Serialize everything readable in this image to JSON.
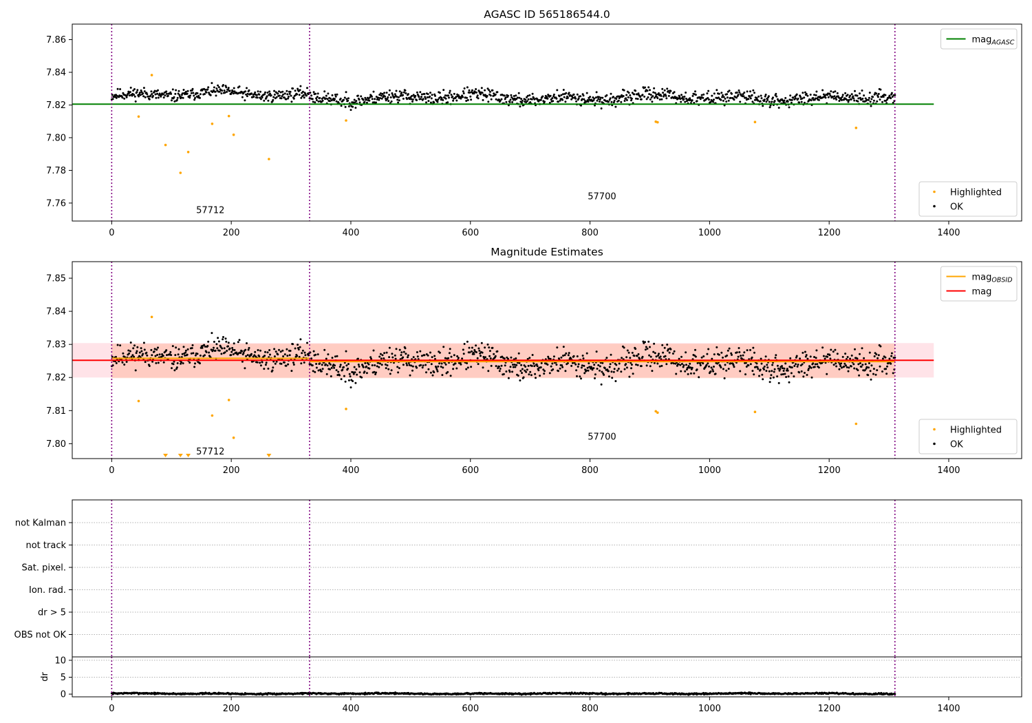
{
  "chart_data": [
    {
      "type": "scatter",
      "title": "AGASC ID 565186544.0",
      "xlim": [
        -66,
        1522
      ],
      "ylim": [
        7.749,
        7.8695
      ],
      "xticks": [
        0,
        200,
        400,
        600,
        800,
        1000,
        1200,
        1400
      ],
      "yticks": [
        7.76,
        7.78,
        7.8,
        7.82,
        7.84,
        7.86
      ],
      "ytick_decimals": 2,
      "vlines": [
        0,
        331,
        1310
      ],
      "obsid_labels": [
        {
          "text": "57712",
          "x": 165,
          "y": 7.7538
        },
        {
          "text": "57700",
          "x": 820,
          "y": 7.7623
        }
      ],
      "lines": [
        {
          "name": "mag_AGASC",
          "color": "#008000",
          "x": [
            -66,
            1375
          ],
          "y": [
            7.8205,
            7.8205
          ]
        }
      ],
      "legend_upper": [
        {
          "label": "mag",
          "subscript": "AGASC",
          "color": "#008000",
          "kind": "line"
        }
      ],
      "legend_lower": [
        {
          "label": "Highlighted",
          "color": "#ffa500",
          "kind": "dot"
        },
        {
          "label": "OK",
          "color": "#000000",
          "kind": "dot"
        }
      ],
      "series": [
        {
          "name": "Highlighted",
          "color": "#ffa500",
          "points": [
            [
              45,
              7.8129
            ],
            [
              67,
              7.8383
            ],
            [
              90,
              7.7955
            ],
            [
              115,
              7.7785
            ],
            [
              128,
              7.7912
            ],
            [
              168,
              7.8085
            ],
            [
              196,
              7.8132
            ],
            [
              204,
              7.8018
            ],
            [
              263,
              7.7869
            ],
            [
              392,
              7.8105
            ],
            [
              910,
              7.8098
            ],
            [
              913,
              7.8094
            ],
            [
              1076,
              7.8096
            ],
            [
              1245,
              7.806
            ]
          ]
        },
        {
          "name": "OK",
          "color": "#000000",
          "segments": [
            {
              "x0": 0,
              "x1": 330,
              "n": 330,
              "base": 7.8265,
              "amp": 0.004,
              "seed": 11
            },
            {
              "x0": 331,
              "x1": 1310,
              "n": 980,
              "base": 7.8245,
              "amp": 0.0045,
              "seed": 23
            }
          ]
        }
      ]
    },
    {
      "type": "scatter",
      "title": "Magnitude Estimates",
      "xlim": [
        -66,
        1522
      ],
      "ylim": [
        7.7955,
        7.855
      ],
      "xticks": [
        0,
        200,
        400,
        600,
        800,
        1000,
        1200,
        1400
      ],
      "yticks": [
        7.8,
        7.81,
        7.82,
        7.83,
        7.84,
        7.85
      ],
      "ytick_decimals": 2,
      "vlines": [
        0,
        331,
        1310
      ],
      "obsid_labels": [
        {
          "text": "57712",
          "x": 165,
          "y": 7.7968
        },
        {
          "text": "57700",
          "x": 820,
          "y": 7.8012
        }
      ],
      "bands": [
        {
          "color": "#ffc0cb",
          "opacity": 0.45,
          "x": [
            -66,
            1375
          ],
          "y": [
            7.82,
            7.8304
          ]
        },
        {
          "color": "#ffa07a",
          "opacity": 0.35,
          "x": [
            0,
            1310
          ],
          "y": [
            7.8198,
            7.8302
          ]
        }
      ],
      "lines": [
        {
          "name": "mag_OBSID",
          "color": "#ffa500",
          "x": [
            0,
            331
          ],
          "y": [
            7.8258,
            7.8258
          ]
        },
        {
          "name": "mag_OBSID",
          "color": "#ffa500",
          "x": [
            331,
            1310
          ],
          "y": [
            7.8248,
            7.8248
          ]
        },
        {
          "name": "mag",
          "color": "#ff0000",
          "x": [
            -66,
            1375
          ],
          "y": [
            7.8252,
            7.8252
          ]
        }
      ],
      "legend_upper": [
        {
          "label": "mag",
          "subscript": "OBSID",
          "color": "#ffa500",
          "kind": "line"
        },
        {
          "label": "mag",
          "subscript": "",
          "color": "#ff0000",
          "kind": "line"
        }
      ],
      "legend_lower": [
        {
          "label": "Highlighted",
          "color": "#ffa500",
          "kind": "dot"
        },
        {
          "label": "OK",
          "color": "#000000",
          "kind": "dot"
        }
      ],
      "clipped_markers": [
        90,
        115,
        128,
        263
      ],
      "series": [
        {
          "name": "Highlighted",
          "color": "#ffa500",
          "points": [
            [
              45,
              7.8129
            ],
            [
              67,
              7.8383
            ],
            [
              168,
              7.8085
            ],
            [
              196,
              7.8132
            ],
            [
              204,
              7.8018
            ],
            [
              392,
              7.8105
            ],
            [
              910,
              7.8098
            ],
            [
              913,
              7.8094
            ],
            [
              1076,
              7.8096
            ],
            [
              1245,
              7.806
            ]
          ]
        },
        {
          "name": "OK",
          "color": "#000000",
          "segments": [
            {
              "x0": 0,
              "x1": 330,
              "n": 330,
              "base": 7.8265,
              "amp": 0.004,
              "seed": 11
            },
            {
              "x0": 331,
              "x1": 1310,
              "n": 980,
              "base": 7.8245,
              "amp": 0.0045,
              "seed": 23
            }
          ]
        }
      ]
    },
    {
      "type": "flags",
      "xlim": [
        -66,
        1522
      ],
      "categories": [
        "not Kalman",
        "not track",
        "Sat. pixel.",
        "Ion. rad.",
        "dr > 5",
        "OBS not OK"
      ],
      "vlines": [
        0,
        331,
        1310
      ],
      "flagged": []
    },
    {
      "type": "scatter",
      "xlim": [
        -66,
        1522
      ],
      "ylim": [
        -0.8,
        11
      ],
      "ylabel": "dr",
      "xticks": [
        0,
        200,
        400,
        600,
        800,
        1000,
        1200,
        1400
      ],
      "yticks": [
        0,
        5,
        10
      ],
      "ytick_decimals": 0,
      "vlines": [
        0,
        331,
        1310
      ],
      "series": [
        {
          "name": "dr",
          "color": "#000000",
          "segments": [
            {
              "x0": 0,
              "x1": 1310,
              "n": 1310,
              "base": 0.15,
              "amp": 0.25,
              "seed": 7
            }
          ]
        }
      ]
    }
  ]
}
